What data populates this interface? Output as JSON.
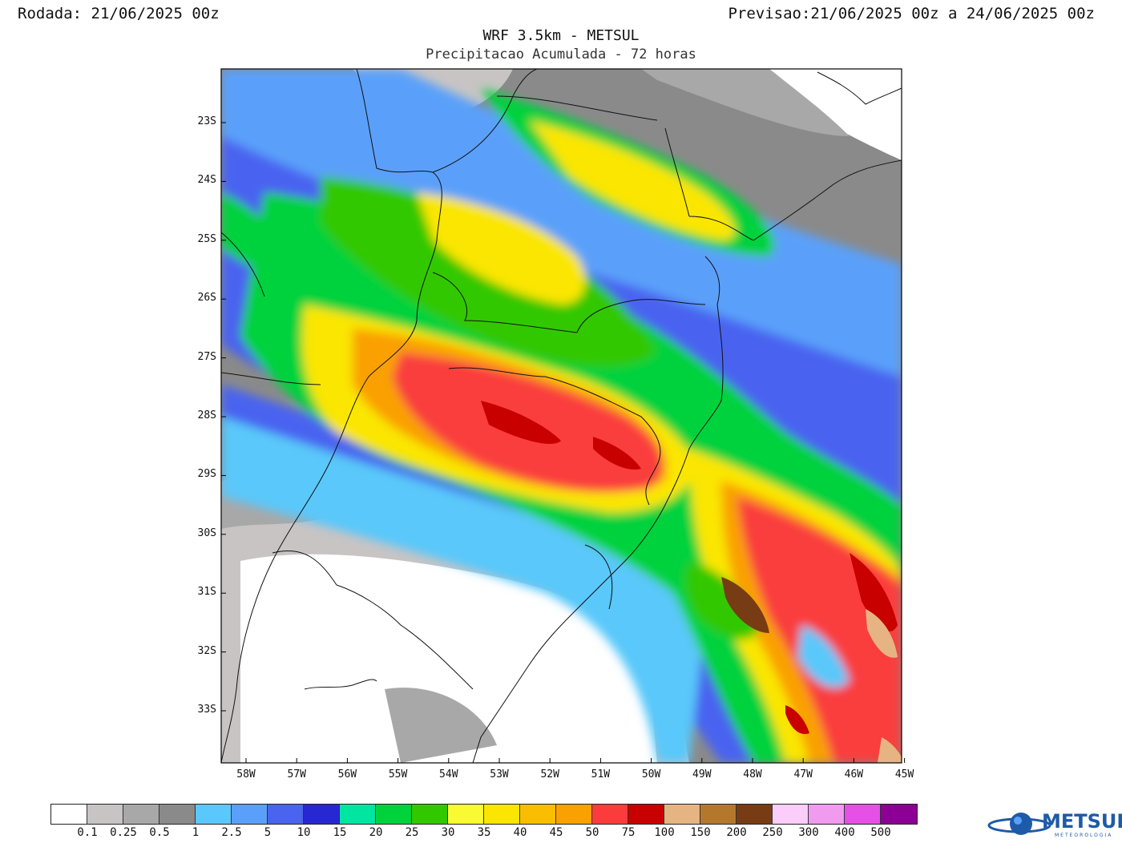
{
  "header": {
    "run_label": "Rodada: 21/06/2025 00z",
    "forecast_label": "Previsao:21/06/2025 00z a 24/06/2025 00z"
  },
  "title": {
    "line1": "WRF 3.5km - METSUL",
    "line2": "Precipitacao Acumulada - 72 horas"
  },
  "map": {
    "lat_labels": [
      "23S",
      "24S",
      "25S",
      "26S",
      "27S",
      "28S",
      "29S",
      "30S",
      "31S",
      "32S",
      "33S"
    ],
    "lon_labels": [
      "58W",
      "57W",
      "56W",
      "55W",
      "54W",
      "53W",
      "52W",
      "51W",
      "50W",
      "49W",
      "48W",
      "47W",
      "46W",
      "45W"
    ]
  },
  "colorbar": {
    "colors": [
      "#ffffff",
      "#c8c4c4",
      "#a8a8a8",
      "#8a8a8a",
      "#5ac8fa",
      "#5aa0fa",
      "#4a64f0",
      "#2828d2",
      "#00e6a0",
      "#00d23c",
      "#32c800",
      "#fafa32",
      "#fae600",
      "#fabe00",
      "#faa000",
      "#fa3c3c",
      "#c80000",
      "#e6b482",
      "#b4782d",
      "#783c14",
      "#facdfa",
      "#f09bf0",
      "#e650e6",
      "#8c0096"
    ],
    "labels": [
      "0.1",
      "0.25",
      "0.5",
      "1",
      "2.5",
      "5",
      "10",
      "15",
      "20",
      "25",
      "30",
      "35",
      "40",
      "45",
      "50",
      "75",
      "100",
      "150",
      "200",
      "250",
      "300",
      "400",
      "500"
    ]
  },
  "logo": {
    "name": "METSUL",
    "subtitle": "METEOROLOGIA"
  }
}
